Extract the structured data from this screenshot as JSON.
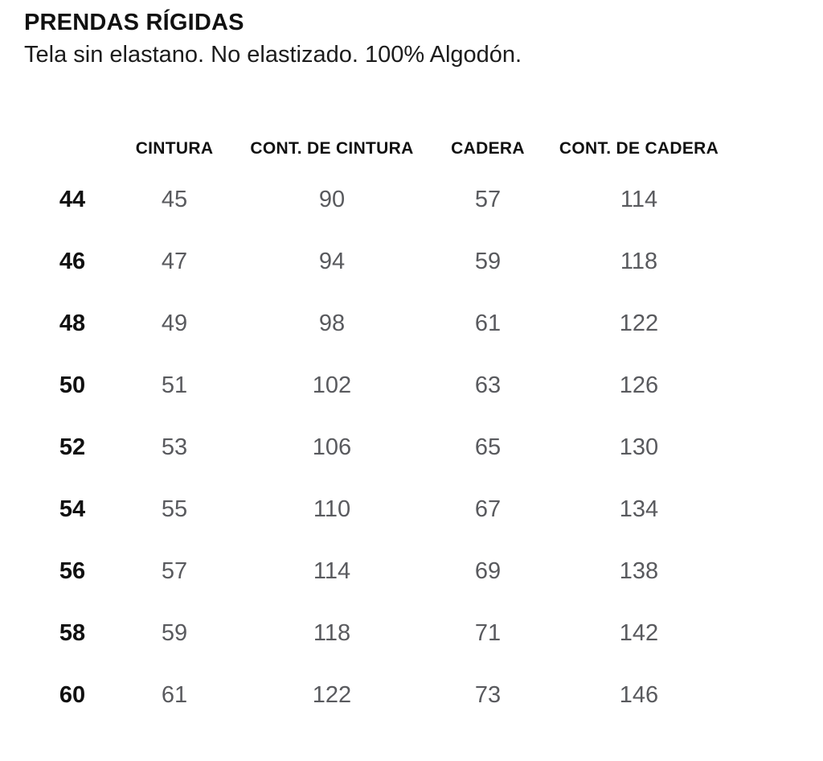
{
  "page": {
    "title": "PRENDAS RÍGIDAS",
    "subtitle": "Tela sin elastano. No elastizado. 100% Algodón."
  },
  "chart_data": {
    "type": "table",
    "columns": [
      "",
      "CINTURA",
      "CONT. DE CINTURA",
      "CADERA",
      "CONT. DE CADERA"
    ],
    "rows": [
      {
        "size": "44",
        "values": [
          45,
          90,
          57,
          114
        ]
      },
      {
        "size": "46",
        "values": [
          47,
          94,
          59,
          118
        ]
      },
      {
        "size": "48",
        "values": [
          49,
          98,
          61,
          122
        ]
      },
      {
        "size": "50",
        "values": [
          51,
          102,
          63,
          126
        ]
      },
      {
        "size": "52",
        "values": [
          53,
          106,
          65,
          130
        ]
      },
      {
        "size": "54",
        "values": [
          55,
          110,
          67,
          134
        ]
      },
      {
        "size": "56",
        "values": [
          57,
          114,
          69,
          138
        ]
      },
      {
        "size": "58",
        "values": [
          59,
          118,
          71,
          142
        ]
      },
      {
        "size": "60",
        "values": [
          61,
          122,
          73,
          146
        ]
      }
    ],
    "colors": {
      "header_text": "#111111",
      "size_text": "#111111",
      "value_text": "#595a5e",
      "background": "#ffffff"
    }
  }
}
